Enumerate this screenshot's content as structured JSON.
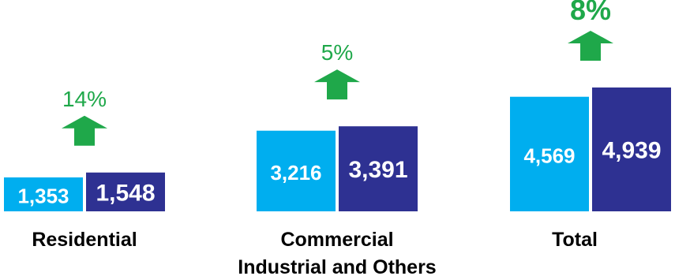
{
  "colors": {
    "prior": "#00aeef",
    "current": "#2e3192",
    "growth": "#1fa84a",
    "category_label": "#000000",
    "value_label": "#ffffff"
  },
  "chart_data": {
    "type": "bar",
    "categories": [
      [
        "Residential"
      ],
      [
        "Commercial",
        "Industrial and Others"
      ],
      [
        "Total"
      ]
    ],
    "series": [
      {
        "values": [
          1353,
          3216,
          4569
        ]
      },
      {
        "values": [
          1548,
          3391,
          4939
        ]
      }
    ],
    "value_labels": [
      [
        "1,353",
        "3,216",
        "4,569"
      ],
      [
        "1,548",
        "3,391",
        "4,939"
      ]
    ],
    "growth_labels": [
      "14%",
      "5%",
      "8%"
    ],
    "growth_emphasis": [
      false,
      false,
      true
    ],
    "grid": false,
    "legend": "none"
  }
}
